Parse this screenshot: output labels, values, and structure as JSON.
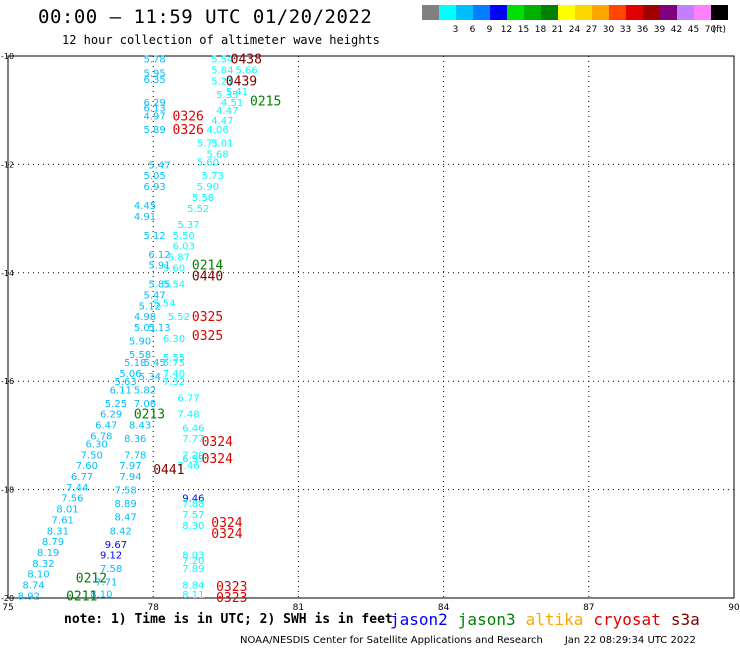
{
  "header": {
    "title": "00:00 – 11:59 UTC 01/20/2022",
    "subtitle": "12 hour collection of altimeter wave heights"
  },
  "color_legend": {
    "unit": "(ft)",
    "bins": [
      {
        "label": "",
        "color": "#808080"
      },
      {
        "label": "3",
        "color": "#00ffff"
      },
      {
        "label": "6",
        "color": "#00bfff"
      },
      {
        "label": "9",
        "color": "#0080ff"
      },
      {
        "label": "12",
        "color": "#0000ff"
      },
      {
        "label": "15",
        "color": "#00e000"
      },
      {
        "label": "18",
        "color": "#00b000"
      },
      {
        "label": "21",
        "color": "#008000"
      },
      {
        "label": "24",
        "color": "#ffff00"
      },
      {
        "label": "27",
        "color": "#ffd700"
      },
      {
        "label": "30",
        "color": "#ffa500"
      },
      {
        "label": "33",
        "color": "#ff4500"
      },
      {
        "label": "36",
        "color": "#e00000"
      },
      {
        "label": "39",
        "color": "#a00000"
      },
      {
        "label": "42",
        "color": "#800080"
      },
      {
        "label": "45",
        "color": "#c080ff"
      },
      {
        "label": "70",
        "color": "#ff80ff"
      },
      {
        "label": "",
        "color": "#000000"
      }
    ]
  },
  "map": {
    "lon_range": [
      75,
      90
    ],
    "lat_range": [
      -20,
      -10
    ],
    "lon_ticks": [
      {
        "value": 75,
        "label": "75"
      },
      {
        "value": 78,
        "label": "78"
      },
      {
        "value": 81,
        "label": "81"
      },
      {
        "value": 84,
        "label": "84"
      },
      {
        "value": 87,
        "label": "87"
      },
      {
        "value": 90,
        "label": "90"
      }
    ],
    "lat_ticks": [
      {
        "value": -10,
        "label": "-10"
      },
      {
        "value": -12,
        "label": "-12"
      },
      {
        "value": -14,
        "label": "-14"
      },
      {
        "value": -16,
        "label": "-16"
      },
      {
        "value": -18,
        "label": "-18"
      },
      {
        "value": -20,
        "label": "-20"
      }
    ],
    "swh_labels": [
      {
        "text": "5.78",
        "lon": 77.8,
        "lat": -10.05,
        "color": "#00bfff"
      },
      {
        "text": "5.95",
        "lon": 77.8,
        "lat": -10.3,
        "color": "#00bfff"
      },
      {
        "text": "6.35",
        "lon": 77.8,
        "lat": -10.42,
        "color": "#00bfff"
      },
      {
        "text": "6.29",
        "lon": 77.8,
        "lat": -10.85,
        "color": "#00bfff"
      },
      {
        "text": "6.13",
        "lon": 77.8,
        "lat": -10.95,
        "color": "#00bfff"
      },
      {
        "text": "4.97",
        "lon": 77.8,
        "lat": -11.1,
        "color": "#00bfff"
      },
      {
        "text": "5.89",
        "lon": 77.8,
        "lat": -11.35,
        "color": "#00bfff"
      },
      {
        "text": "5.54",
        "lon": 79.2,
        "lat": -10.05,
        "color": "#00ffff"
      },
      {
        "text": "5.84",
        "lon": 79.2,
        "lat": -10.25,
        "color": "#00ffff"
      },
      {
        "text": "5.66",
        "lon": 79.7,
        "lat": -10.25,
        "color": "#00ffff"
      },
      {
        "text": "5.21",
        "lon": 79.2,
        "lat": -10.45,
        "color": "#00ffff"
      },
      {
        "text": "5.35",
        "lon": 79.3,
        "lat": -10.7,
        "color": "#00ffff"
      },
      {
        "text": "5.41",
        "lon": 79.5,
        "lat": -10.65,
        "color": "#00ffff"
      },
      {
        "text": "4.51",
        "lon": 79.4,
        "lat": -10.85,
        "color": "#00ffff"
      },
      {
        "text": "4.47",
        "lon": 79.3,
        "lat": -11.0,
        "color": "#00ffff"
      },
      {
        "text": "4.47",
        "lon": 79.2,
        "lat": -11.18,
        "color": "#00ffff"
      },
      {
        "text": "4.06",
        "lon": 79.1,
        "lat": -11.35,
        "color": "#00ffff"
      },
      {
        "text": "5.71",
        "lon": 78.9,
        "lat": -11.6,
        "color": "#00ffff"
      },
      {
        "text": "5.01",
        "lon": 79.2,
        "lat": -11.6,
        "color": "#00ffff"
      },
      {
        "text": "5.68",
        "lon": 79.1,
        "lat": -11.8,
        "color": "#00ffff"
      },
      {
        "text": "5.60",
        "lon": 78.9,
        "lat": -11.95,
        "color": "#00ffff"
      },
      {
        "text": "5.73",
        "lon": 79.0,
        "lat": -12.2,
        "color": "#00ffff"
      },
      {
        "text": "5.90",
        "lon": 78.9,
        "lat": -12.4,
        "color": "#00ffff"
      },
      {
        "text": "5.58",
        "lon": 78.8,
        "lat": -12.6,
        "color": "#00ffff"
      },
      {
        "text": "5.52",
        "lon": 78.7,
        "lat": -12.8,
        "color": "#00ffff"
      },
      {
        "text": "5.37",
        "lon": 78.5,
        "lat": -13.1,
        "color": "#00ffff"
      },
      {
        "text": "5.50",
        "lon": 78.4,
        "lat": -13.3,
        "color": "#00ffff"
      },
      {
        "text": "6.03",
        "lon": 78.4,
        "lat": -13.5,
        "color": "#00ffff"
      },
      {
        "text": "5.87",
        "lon": 78.3,
        "lat": -13.7,
        "color": "#00ffff"
      },
      {
        "text": "5.60",
        "lon": 78.2,
        "lat": -13.9,
        "color": "#00ffff"
      },
      {
        "text": "5.54",
        "lon": 78.2,
        "lat": -14.2,
        "color": "#00ffff"
      },
      {
        "text": "5.47",
        "lon": 77.9,
        "lat": -12.0,
        "color": "#00bfff"
      },
      {
        "text": "5.05",
        "lon": 77.8,
        "lat": -12.2,
        "color": "#00bfff"
      },
      {
        "text": "6.93",
        "lon": 77.8,
        "lat": -12.4,
        "color": "#00bfff"
      },
      {
        "text": "4.45",
        "lon": 77.6,
        "lat": -12.75,
        "color": "#00bfff"
      },
      {
        "text": "4.91",
        "lon": 77.6,
        "lat": -12.95,
        "color": "#00bfff"
      },
      {
        "text": "5.12",
        "lon": 77.8,
        "lat": -13.3,
        "color": "#00bfff"
      },
      {
        "text": "6.12",
        "lon": 77.9,
        "lat": -13.65,
        "color": "#00bfff"
      },
      {
        "text": "5.91",
        "lon": 77.9,
        "lat": -13.85,
        "color": "#00bfff"
      },
      {
        "text": "5.85",
        "lon": 77.9,
        "lat": -14.2,
        "color": "#00bfff"
      },
      {
        "text": "5.47",
        "lon": 77.8,
        "lat": -14.4,
        "color": "#00bfff"
      },
      {
        "text": "5.54",
        "lon": 78.0,
        "lat": -14.55,
        "color": "#00ffff"
      },
      {
        "text": "5.12",
        "lon": 77.7,
        "lat": -14.6,
        "color": "#00bfff"
      },
      {
        "text": "5.52",
        "lon": 78.3,
        "lat": -14.8,
        "color": "#00ffff"
      },
      {
        "text": "4.98",
        "lon": 77.6,
        "lat": -14.8,
        "color": "#00bfff"
      },
      {
        "text": "5.13",
        "lon": 77.9,
        "lat": -15.0,
        "color": "#00bfff"
      },
      {
        "text": "5.01",
        "lon": 77.6,
        "lat": -15.0,
        "color": "#00bfff"
      },
      {
        "text": "6.30",
        "lon": 78.2,
        "lat": -15.2,
        "color": "#00ffff"
      },
      {
        "text": "5.90",
        "lon": 77.5,
        "lat": -15.25,
        "color": "#00bfff"
      },
      {
        "text": "5.58",
        "lon": 77.5,
        "lat": -15.5,
        "color": "#00bfff"
      },
      {
        "text": "5.55",
        "lon": 78.2,
        "lat": -15.55,
        "color": "#00ffff"
      },
      {
        "text": "5.45",
        "lon": 77.8,
        "lat": -15.65,
        "color": "#00bfff"
      },
      {
        "text": "5.75",
        "lon": 78.2,
        "lat": -15.65,
        "color": "#00ffff"
      },
      {
        "text": "5.18",
        "lon": 77.4,
        "lat": -15.65,
        "color": "#00bfff"
      },
      {
        "text": "5.06",
        "lon": 77.3,
        "lat": -15.85,
        "color": "#00bfff"
      },
      {
        "text": "7.40",
        "lon": 78.2,
        "lat": -15.85,
        "color": "#00ffff"
      },
      {
        "text": "5.34",
        "lon": 77.7,
        "lat": -15.9,
        "color": "#00bfff"
      },
      {
        "text": "5.63",
        "lon": 77.2,
        "lat": -16.0,
        "color": "#00bfff"
      },
      {
        "text": "7.32",
        "lon": 78.2,
        "lat": -16.0,
        "color": "#00ffff"
      },
      {
        "text": "6.11",
        "lon": 77.1,
        "lat": -16.15,
        "color": "#00bfff"
      },
      {
        "text": "5.82",
        "lon": 77.6,
        "lat": -16.15,
        "color": "#00bfff"
      },
      {
        "text": "6.77",
        "lon": 78.5,
        "lat": -16.3,
        "color": "#00ffff"
      },
      {
        "text": "5.25",
        "lon": 77.0,
        "lat": -16.4,
        "color": "#00bfff"
      },
      {
        "text": "7.08",
        "lon": 77.6,
        "lat": -16.4,
        "color": "#00bfff"
      },
      {
        "text": "6.29",
        "lon": 76.9,
        "lat": -16.6,
        "color": "#00bfff"
      },
      {
        "text": "7.48",
        "lon": 78.5,
        "lat": -16.6,
        "color": "#00ffff"
      },
      {
        "text": "6.47",
        "lon": 76.8,
        "lat": -16.8,
        "color": "#00bfff"
      },
      {
        "text": "8.43",
        "lon": 77.5,
        "lat": -16.8,
        "color": "#00bfff"
      },
      {
        "text": "6.46",
        "lon": 78.6,
        "lat": -16.85,
        "color": "#00ffff"
      },
      {
        "text": "6.78",
        "lon": 76.7,
        "lat": -17.0,
        "color": "#00bfff"
      },
      {
        "text": "8.36",
        "lon": 77.4,
        "lat": -17.05,
        "color": "#00bfff"
      },
      {
        "text": "7.77",
        "lon": 78.6,
        "lat": -17.05,
        "color": "#00ffff"
      },
      {
        "text": "6.30",
        "lon": 76.6,
        "lat": -17.15,
        "color": "#00bfff"
      },
      {
        "text": "7.50",
        "lon": 76.5,
        "lat": -17.35,
        "color": "#00bfff"
      },
      {
        "text": "7.78",
        "lon": 77.4,
        "lat": -17.35,
        "color": "#00bfff"
      },
      {
        "text": "7.20",
        "lon": 78.6,
        "lat": -17.35,
        "color": "#00ffff"
      },
      {
        "text": "6.99",
        "lon": 78.6,
        "lat": -17.42,
        "color": "#00ffff"
      },
      {
        "text": "7.60",
        "lon": 76.4,
        "lat": -17.55,
        "color": "#00bfff"
      },
      {
        "text": "7.97",
        "lon": 77.3,
        "lat": -17.55,
        "color": "#00bfff"
      },
      {
        "text": "7.46",
        "lon": 78.5,
        "lat": -17.55,
        "color": "#00ffff"
      },
      {
        "text": "6.77",
        "lon": 76.3,
        "lat": -17.75,
        "color": "#00bfff"
      },
      {
        "text": "7.94",
        "lon": 77.3,
        "lat": -17.75,
        "color": "#00bfff"
      },
      {
        "text": "7.44",
        "lon": 76.2,
        "lat": -17.95,
        "color": "#00bfff"
      },
      {
        "text": "7.58",
        "lon": 77.2,
        "lat": -18.0,
        "color": "#00bfff"
      },
      {
        "text": "7.56",
        "lon": 76.1,
        "lat": -18.15,
        "color": "#00bfff"
      },
      {
        "text": "8.89",
        "lon": 77.2,
        "lat": -18.25,
        "color": "#00bfff"
      },
      {
        "text": "9.46",
        "lon": 78.6,
        "lat": -18.15,
        "color": "#0000ff"
      },
      {
        "text": "7.88",
        "lon": 78.6,
        "lat": -18.25,
        "color": "#00ffff"
      },
      {
        "text": "8.01",
        "lon": 76.0,
        "lat": -18.35,
        "color": "#00bfff"
      },
      {
        "text": "8.47",
        "lon": 77.2,
        "lat": -18.5,
        "color": "#00bfff"
      },
      {
        "text": "7.57",
        "lon": 78.6,
        "lat": -18.45,
        "color": "#00ffff"
      },
      {
        "text": "7.61",
        "lon": 75.9,
        "lat": -18.55,
        "color": "#00bfff"
      },
      {
        "text": "8.30",
        "lon": 78.6,
        "lat": -18.65,
        "color": "#00ffff"
      },
      {
        "text": "8.42",
        "lon": 77.1,
        "lat": -18.75,
        "color": "#00bfff"
      },
      {
        "text": "8.31",
        "lon": 75.8,
        "lat": -18.75,
        "color": "#00bfff"
      },
      {
        "text": "8.79",
        "lon": 75.7,
        "lat": -18.95,
        "color": "#00bfff"
      },
      {
        "text": "9.67",
        "lon": 77.0,
        "lat": -19.0,
        "color": "#0000ff"
      },
      {
        "text": "8.19",
        "lon": 75.6,
        "lat": -19.15,
        "color": "#00bfff"
      },
      {
        "text": "9.12",
        "lon": 76.9,
        "lat": -19.2,
        "color": "#0000ff"
      },
      {
        "text": "8.03",
        "lon": 78.6,
        "lat": -19.2,
        "color": "#00ffff"
      },
      {
        "text": "7.20",
        "lon": 78.6,
        "lat": -19.3,
        "color": "#00ffff"
      },
      {
        "text": "8.32",
        "lon": 75.5,
        "lat": -19.35,
        "color": "#00bfff"
      },
      {
        "text": "7.58",
        "lon": 76.9,
        "lat": -19.45,
        "color": "#00bfff"
      },
      {
        "text": "7.89",
        "lon": 78.6,
        "lat": -19.45,
        "color": "#00ffff"
      },
      {
        "text": "8.10",
        "lon": 75.4,
        "lat": -19.55,
        "color": "#00bfff"
      },
      {
        "text": "7.71",
        "lon": 76.8,
        "lat": -19.7,
        "color": "#00bfff"
      },
      {
        "text": "8.74",
        "lon": 75.3,
        "lat": -19.75,
        "color": "#00bfff"
      },
      {
        "text": "8.84",
        "lon": 78.6,
        "lat": -19.75,
        "color": "#00ffff"
      },
      {
        "text": "8.92",
        "lon": 75.2,
        "lat": -19.95,
        "color": "#00bfff"
      },
      {
        "text": "8.10",
        "lon": 76.7,
        "lat": -19.92,
        "color": "#00bfff"
      },
      {
        "text": "8.11",
        "lon": 78.6,
        "lat": -19.93,
        "color": "#00ffff"
      }
    ],
    "pass_labels": [
      {
        "text": "0438",
        "lon": 79.6,
        "lat": -10.05,
        "color": "#800000"
      },
      {
        "text": "0439",
        "lon": 79.5,
        "lat": -10.45,
        "color": "#800000"
      },
      {
        "text": "0215",
        "lon": 80.0,
        "lat": -10.82,
        "color": "#008000"
      },
      {
        "text": "0326",
        "lon": 78.4,
        "lat": -11.1,
        "color": "#e00000"
      },
      {
        "text": "0326",
        "lon": 78.4,
        "lat": -11.35,
        "color": "#e00000"
      },
      {
        "text": "0214",
        "lon": 78.8,
        "lat": -13.85,
        "color": "#008000"
      },
      {
        "text": "0440",
        "lon": 78.8,
        "lat": -14.05,
        "color": "#800000"
      },
      {
        "text": "0325",
        "lon": 78.8,
        "lat": -14.8,
        "color": "#e00000"
      },
      {
        "text": "0325",
        "lon": 78.8,
        "lat": -15.15,
        "color": "#e00000"
      },
      {
        "text": "0213",
        "lon": 77.6,
        "lat": -16.6,
        "color": "#008000"
      },
      {
        "text": "0324",
        "lon": 79.0,
        "lat": -17.1,
        "color": "#e00000"
      },
      {
        "text": "0324",
        "lon": 79.0,
        "lat": -17.42,
        "color": "#e00000"
      },
      {
        "text": "0441",
        "lon": 78.0,
        "lat": -17.62,
        "color": "#800000"
      },
      {
        "text": "0324",
        "lon": 79.2,
        "lat": -18.6,
        "color": "#e00000"
      },
      {
        "text": "0324",
        "lon": 79.2,
        "lat": -18.8,
        "color": "#e00000"
      },
      {
        "text": "0212",
        "lon": 76.4,
        "lat": -19.62,
        "color": "#008000"
      },
      {
        "text": "0211",
        "lon": 76.2,
        "lat": -19.95,
        "color": "#008000"
      },
      {
        "text": "0323",
        "lon": 79.3,
        "lat": -19.78,
        "color": "#e00000"
      },
      {
        "text": "0323",
        "lon": 79.3,
        "lat": -19.98,
        "color": "#e00000"
      }
    ]
  },
  "footer": {
    "note": "note: 1) Time is in UTC; 2) SWH is in feet",
    "satellites": [
      {
        "name": "jason2",
        "color": "#0000ff"
      },
      {
        "name": "jason3",
        "color": "#008000"
      },
      {
        "name": "altika",
        "color": "#ffa500"
      },
      {
        "name": "cryosat",
        "color": "#e00000"
      },
      {
        "name": "s3a",
        "color": "#800000"
      }
    ],
    "credit": "NOAA/NESDIS Center for Satellite Applications and Research",
    "timestamp": "Jan 22 08:29:34 UTC 2022"
  }
}
